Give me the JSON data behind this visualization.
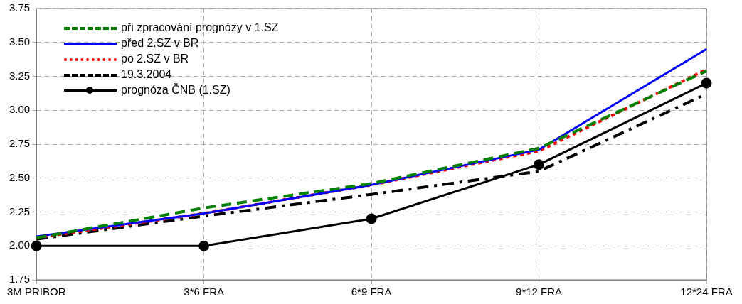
{
  "chart_data": {
    "type": "line",
    "categories": [
      "3M PRIBOR",
      "3*6 FRA",
      "6*9 FRA",
      "9*12 FRA",
      "12*24 FRA"
    ],
    "series": [
      {
        "name": "při zpracování prognózy v 1.SZ",
        "color": "#008000",
        "line_style": "dashed",
        "marker": "none",
        "values": [
          2.06,
          2.28,
          2.46,
          2.72,
          3.29
        ]
      },
      {
        "name": "před 2.SZ v BR",
        "color": "#0000ff",
        "line_style": "solid",
        "marker": "none",
        "values": [
          2.07,
          2.24,
          2.45,
          2.71,
          3.45
        ]
      },
      {
        "name": "po 2.SZ v BR",
        "color": "#ff0000",
        "line_style": "dotted",
        "marker": "none",
        "values": [
          2.06,
          2.24,
          2.45,
          2.7,
          3.3
        ]
      },
      {
        "name": "19.3.2004",
        "color": "#000000",
        "line_style": "dashdot",
        "marker": "none",
        "values": [
          2.05,
          2.22,
          2.38,
          2.55,
          3.12
        ]
      },
      {
        "name": "prognóza ČNB (1.SZ)",
        "color": "#000000",
        "line_style": "solid",
        "marker": "circle",
        "values": [
          2.0,
          2.0,
          2.2,
          2.6,
          3.2
        ]
      }
    ],
    "ylim": [
      1.75,
      3.75
    ],
    "yticks": [
      {
        "value": 1.75,
        "label": "1.75"
      },
      {
        "value": 2,
        "label": "2.00"
      },
      {
        "value": 2.25,
        "label": "2.25"
      },
      {
        "value": 2.5,
        "label": "2.50"
      },
      {
        "value": 2.75,
        "label": "2.75"
      },
      {
        "value": 3,
        "label": "3.00"
      },
      {
        "value": 3.25,
        "label": "3.25"
      },
      {
        "value": 3.5,
        "label": "3.50"
      },
      {
        "value": 3.75,
        "label": "3.75"
      }
    ],
    "grid": true,
    "legend": "top left"
  }
}
